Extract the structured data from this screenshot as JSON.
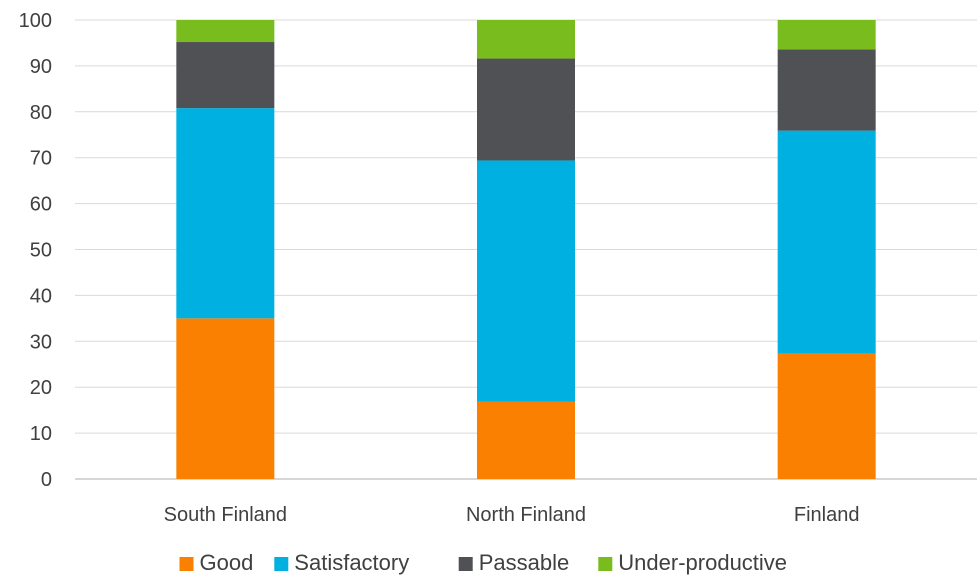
{
  "chart_data": {
    "type": "bar",
    "stacked": true,
    "categories": [
      "South Finland",
      "North Finland",
      "Finland"
    ],
    "series": [
      {
        "name": "Good",
        "color": "#f98000",
        "values": [
          35,
          16.8,
          27.3
        ]
      },
      {
        "name": "Satisfactory",
        "color": "#00b0e0",
        "values": [
          45.8,
          52.6,
          48.6
        ]
      },
      {
        "name": "Passable",
        "color": "#4f5155",
        "values": [
          14.4,
          22.2,
          17.7
        ]
      },
      {
        "name": "Under-productive",
        "color": "#78bc1e",
        "values": [
          4.8,
          8.4,
          6.4
        ]
      }
    ],
    "ylim": [
      0,
      100
    ],
    "yticks": [
      0,
      10,
      20,
      30,
      40,
      50,
      60,
      70,
      80,
      90,
      100
    ],
    "grid": true,
    "legend_position": "bottom",
    "title": "",
    "xlabel": "",
    "ylabel": ""
  }
}
